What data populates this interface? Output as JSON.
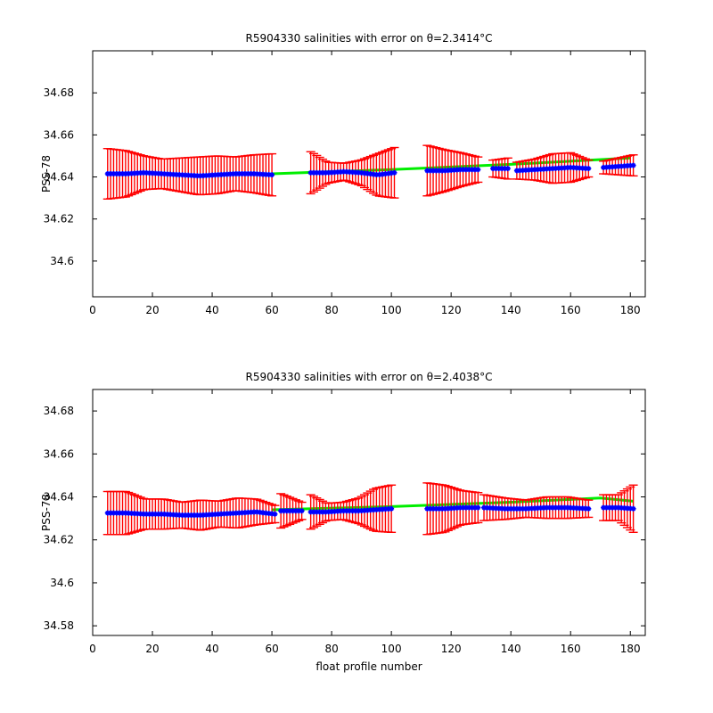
{
  "chart_data": [
    {
      "type": "line",
      "title": "R5904330 salinities with error on θ=2.3414°C",
      "xlabel": "",
      "ylabel": "PSS-78",
      "xlim": [
        0,
        185
      ],
      "ylim": [
        34.583,
        34.7
      ],
      "xticks": [
        0,
        20,
        40,
        60,
        80,
        100,
        120,
        140,
        160,
        180
      ],
      "yticks": [
        34.6,
        34.62,
        34.64,
        34.66,
        34.68
      ],
      "ytick_labels": [
        "34.6",
        "34.62",
        "34.64",
        "34.66",
        "34.68"
      ],
      "colors": {
        "salinity": "#0000ff",
        "error": "#ff0000",
        "fit": "#00ee00"
      },
      "segments": [
        {
          "x0": 5,
          "x1": 60,
          "y": [
            34.6415,
            34.6415,
            34.642,
            34.6415,
            34.641,
            34.6405,
            34.641,
            34.6415,
            34.6415,
            34.641
          ],
          "err": [
            0.012,
            0.011,
            0.008,
            0.007,
            0.008,
            0.009,
            0.009,
            0.008,
            0.009,
            0.01
          ]
        },
        {
          "x0": 73,
          "x1": 101,
          "y": [
            34.642,
            34.642,
            34.6425,
            34.642,
            34.641,
            34.642
          ],
          "err": [
            0.01,
            0.005,
            0.004,
            0.006,
            0.01,
            0.012
          ]
        },
        {
          "x0": 112,
          "x1": 129,
          "y": [
            34.643,
            34.643,
            34.6435,
            34.6435
          ],
          "err": [
            0.012,
            0.01,
            0.008,
            0.006
          ]
        },
        {
          "x0": 134,
          "x1": 139,
          "y": [
            34.644,
            34.644
          ],
          "err": [
            0.004,
            0.005
          ]
        },
        {
          "x0": 142,
          "x1": 166,
          "y": [
            34.643,
            34.6435,
            34.644,
            34.6445,
            34.644
          ],
          "err": [
            0.004,
            0.005,
            0.007,
            0.007,
            0.004
          ]
        },
        {
          "x0": 171,
          "x1": 181,
          "y": [
            34.6445,
            34.645,
            34.6455
          ],
          "err": [
            0.003,
            0.004,
            0.005
          ]
        }
      ],
      "fit": {
        "x": [
          60,
          100,
          140,
          180
        ],
        "y": [
          34.6415,
          34.6435,
          34.646,
          34.649
        ]
      }
    },
    {
      "type": "line",
      "title": "R5904330 salinities with error on θ=2.4038°C",
      "xlabel": "float profile number",
      "ylabel": "PSS-78",
      "xlim": [
        0,
        185
      ],
      "ylim": [
        34.5755,
        34.69
      ],
      "xticks": [
        0,
        20,
        40,
        60,
        80,
        100,
        120,
        140,
        160,
        180
      ],
      "yticks": [
        34.58,
        34.6,
        34.62,
        34.64,
        34.66,
        34.68
      ],
      "ytick_labels": [
        "34.58",
        "34.6",
        "34.62",
        "34.64",
        "34.66",
        "34.68"
      ],
      "colors": {
        "salinity": "#0000ff",
        "error": "#ff0000",
        "fit": "#00ee00"
      },
      "segments": [
        {
          "x0": 5,
          "x1": 61,
          "y": [
            34.6325,
            34.6325,
            34.632,
            34.632,
            34.6315,
            34.6315,
            34.632,
            34.6325,
            34.633,
            34.632
          ],
          "err": [
            0.01,
            0.01,
            0.007,
            0.007,
            0.006,
            0.007,
            0.006,
            0.007,
            0.006,
            0.004
          ]
        },
        {
          "x0": 63,
          "x1": 70,
          "y": [
            34.6335,
            34.6335
          ],
          "err": [
            0.008,
            0.004
          ]
        },
        {
          "x0": 73,
          "x1": 100,
          "y": [
            34.633,
            34.633,
            34.6335,
            34.6335,
            34.634,
            34.6345
          ],
          "err": [
            0.008,
            0.004,
            0.004,
            0.006,
            0.01,
            0.011
          ]
        },
        {
          "x0": 112,
          "x1": 129,
          "y": [
            34.6345,
            34.6345,
            34.635,
            34.635
          ],
          "err": [
            0.012,
            0.011,
            0.008,
            0.007
          ]
        },
        {
          "x0": 131,
          "x1": 166,
          "y": [
            34.635,
            34.6345,
            34.6345,
            34.635,
            34.635,
            34.6345
          ],
          "err": [
            0.006,
            0.005,
            0.004,
            0.005,
            0.005,
            0.004
          ]
        },
        {
          "x0": 171,
          "x1": 181,
          "y": [
            34.635,
            34.635,
            34.6345
          ],
          "err": [
            0.006,
            0.006,
            0.011
          ]
        }
      ],
      "fit": {
        "x": [
          60,
          100,
          140,
          170,
          181
        ],
        "y": [
          34.634,
          34.6355,
          34.6375,
          34.6395,
          34.638
        ]
      }
    }
  ]
}
